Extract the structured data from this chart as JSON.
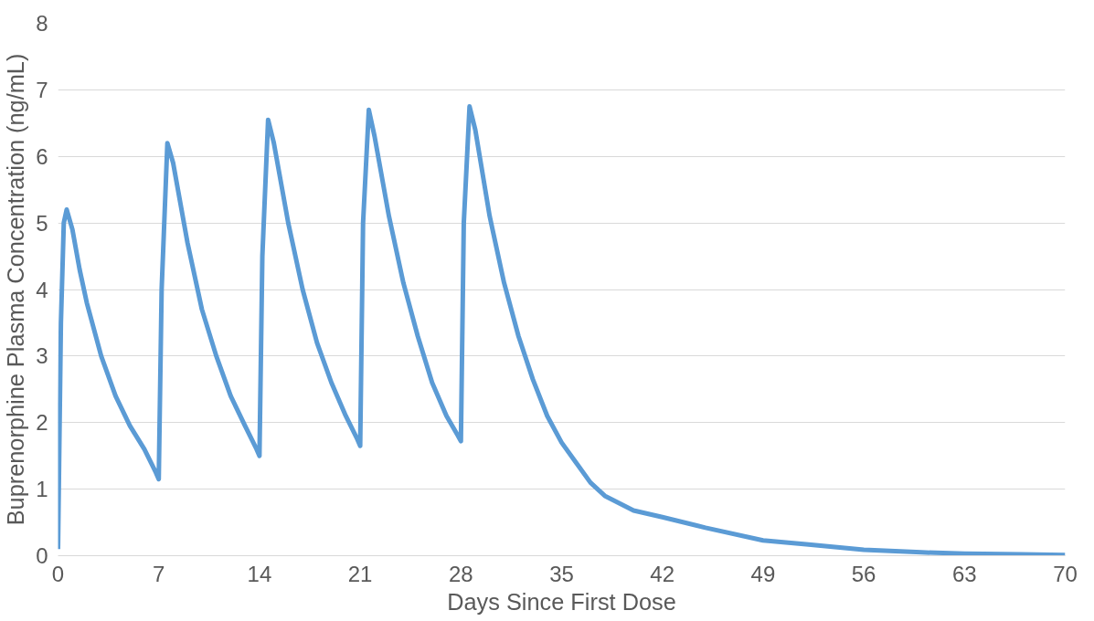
{
  "chart_data": {
    "type": "line",
    "xlabel": "Days Since First Dose",
    "ylabel": "Buprenorphine Plasma Concentration (ng/mL)",
    "x": [
      0,
      0.2,
      0.4,
      0.6,
      1,
      1.5,
      2,
      3,
      4,
      5,
      6,
      6.8,
      7,
      7.2,
      7.6,
      8,
      9,
      10,
      11,
      12,
      13,
      13.8,
      14,
      14.2,
      14.6,
      15,
      16,
      17,
      18,
      19,
      20,
      20.8,
      21,
      21.2,
      21.6,
      22,
      23,
      24,
      25,
      26,
      27,
      27.8,
      28,
      28.2,
      28.6,
      29,
      30,
      31,
      32,
      33,
      34,
      35,
      36,
      37,
      38,
      40,
      42,
      45,
      49,
      52,
      56,
      60,
      63,
      67,
      70
    ],
    "series": [
      {
        "color": "#5b9bd5",
        "values": [
          0.1,
          3.5,
          5.0,
          5.2,
          4.9,
          4.3,
          3.8,
          3.0,
          2.4,
          1.95,
          1.6,
          1.25,
          1.15,
          4.0,
          6.2,
          5.9,
          4.7,
          3.7,
          3.0,
          2.4,
          1.95,
          1.6,
          1.5,
          4.5,
          6.55,
          6.2,
          5.0,
          4.0,
          3.2,
          2.6,
          2.1,
          1.75,
          1.65,
          5.0,
          6.7,
          6.3,
          5.1,
          4.1,
          3.3,
          2.6,
          2.1,
          1.8,
          1.72,
          5.0,
          6.75,
          6.4,
          5.1,
          4.1,
          3.3,
          2.65,
          2.1,
          1.7,
          1.4,
          1.1,
          0.9,
          0.68,
          0.58,
          0.42,
          0.23,
          0.17,
          0.09,
          0.05,
          0.03,
          0.02,
          0.01
        ]
      }
    ],
    "xlim": [
      0,
      70
    ],
    "ylim": [
      0,
      8
    ],
    "xticks": [
      0,
      7,
      14,
      21,
      28,
      35,
      42,
      49,
      56,
      63,
      70
    ],
    "yticks": [
      0,
      1,
      2,
      3,
      4,
      5,
      6,
      7,
      8
    ],
    "grid": "y"
  }
}
